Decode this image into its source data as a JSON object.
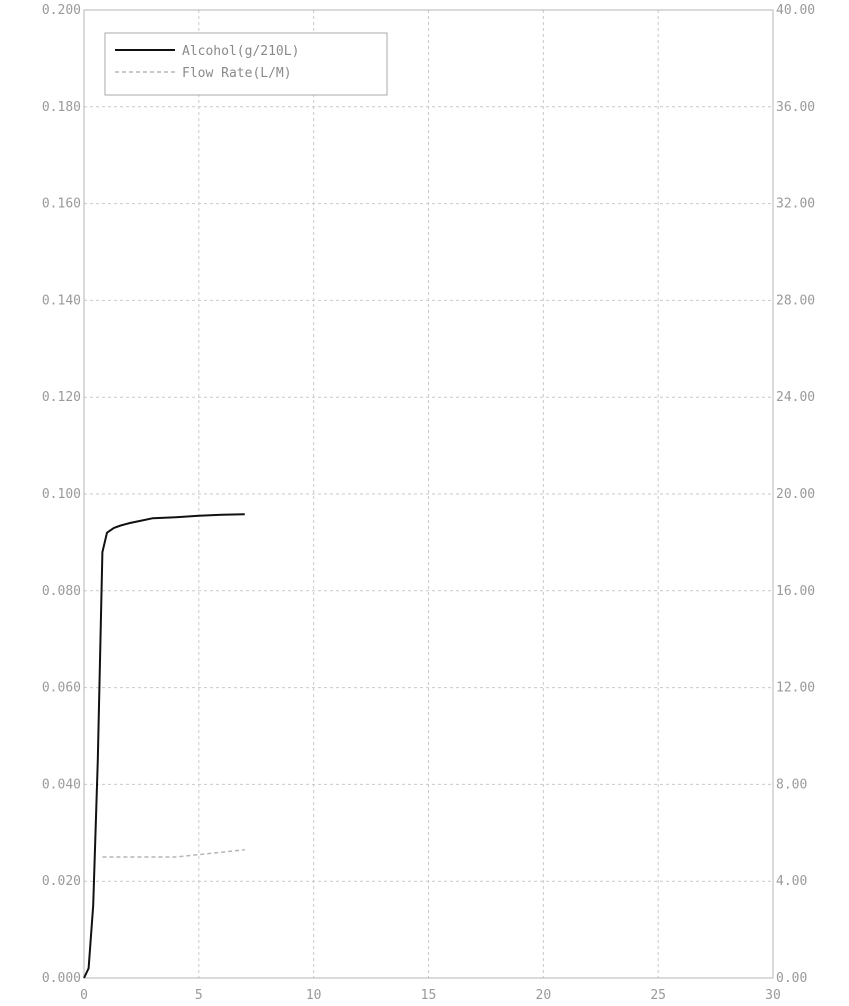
{
  "chart_data": {
    "type": "line",
    "xlim": [
      0,
      30
    ],
    "ylim": [
      0,
      0.2
    ],
    "y2lim": [
      0,
      40
    ],
    "x_ticks": [
      "0",
      "5",
      "10",
      "15",
      "20",
      "25",
      "30"
    ],
    "y_ticks": [
      "0.000",
      "0.020",
      "0.040",
      "0.060",
      "0.080",
      "0.100",
      "0.120",
      "0.140",
      "0.160",
      "0.180",
      "0.200"
    ],
    "y2_ticks": [
      "0.00",
      "4.00",
      "8.00",
      "12.00",
      "16.00",
      "20.00",
      "24.00",
      "28.00",
      "32.00",
      "36.00",
      "40.00"
    ],
    "grid": true,
    "legend_position": "top-left",
    "series": [
      {
        "name": "Alcohol(g/210L)",
        "axis": "left",
        "color": "#111111",
        "style": "solid",
        "x": [
          0,
          0.2,
          0.4,
          0.6,
          0.8,
          1.0,
          1.3,
          1.6,
          2.0,
          2.5,
          3.0,
          4.0,
          5.0,
          6.0,
          7.0
        ],
        "y": [
          0,
          0.002,
          0.015,
          0.045,
          0.088,
          0.092,
          0.093,
          0.0935,
          0.094,
          0.0945,
          0.095,
          0.0952,
          0.0955,
          0.0957,
          0.0958
        ]
      },
      {
        "name": "Flow Rate(L/M)",
        "axis": "right",
        "color": "#b5b5b5",
        "style": "dashed",
        "x": [
          0.8,
          2.0,
          4.0,
          6.0,
          7.0
        ],
        "y": [
          5.0,
          5.0,
          5.0,
          5.2,
          5.3
        ]
      }
    ]
  }
}
